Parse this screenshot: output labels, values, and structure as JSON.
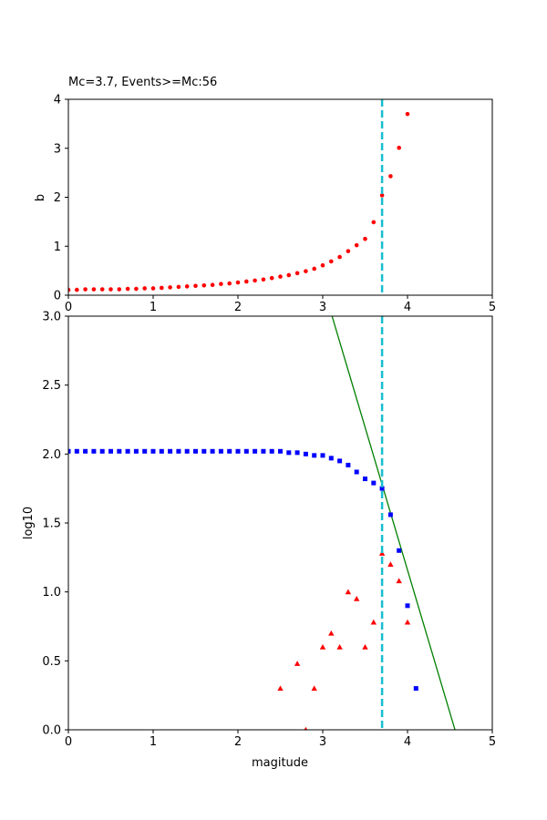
{
  "chart_data": [
    {
      "type": "scatter",
      "title": "Mc=3.7, Events>=Mc:56",
      "xlabel": "",
      "ylabel": "b",
      "xlim": [
        0,
        5
      ],
      "ylim": [
        0,
        4
      ],
      "xticks": [
        "0",
        "1",
        "2",
        "3",
        "4",
        "5"
      ],
      "yticks": [
        "0",
        "1",
        "2",
        "3",
        "4"
      ],
      "mc_line": {
        "x": 3.7,
        "color": "#17becf"
      },
      "series": [
        {
          "marker": "circle",
          "color": "#ff0000",
          "points": [
            [
              0.0,
              0.11
            ],
            [
              0.1,
              0.11
            ],
            [
              0.2,
              0.12
            ],
            [
              0.3,
              0.12
            ],
            [
              0.4,
              0.12
            ],
            [
              0.5,
              0.12
            ],
            [
              0.6,
              0.12
            ],
            [
              0.7,
              0.13
            ],
            [
              0.8,
              0.13
            ],
            [
              0.9,
              0.14
            ],
            [
              1.0,
              0.14
            ],
            [
              1.1,
              0.15
            ],
            [
              1.2,
              0.16
            ],
            [
              1.3,
              0.17
            ],
            [
              1.4,
              0.18
            ],
            [
              1.5,
              0.19
            ],
            [
              1.6,
              0.2
            ],
            [
              1.7,
              0.21
            ],
            [
              1.8,
              0.23
            ],
            [
              1.9,
              0.24
            ],
            [
              2.0,
              0.26
            ],
            [
              2.1,
              0.28
            ],
            [
              2.2,
              0.3
            ],
            [
              2.3,
              0.32
            ],
            [
              2.4,
              0.35
            ],
            [
              2.5,
              0.38
            ],
            [
              2.6,
              0.41
            ],
            [
              2.7,
              0.45
            ],
            [
              2.8,
              0.49
            ],
            [
              2.9,
              0.54
            ],
            [
              3.0,
              0.61
            ],
            [
              3.1,
              0.69
            ],
            [
              3.2,
              0.78
            ],
            [
              3.3,
              0.9
            ],
            [
              3.4,
              1.02
            ],
            [
              3.5,
              1.15
            ],
            [
              3.6,
              1.49
            ],
            [
              3.7,
              2.04
            ],
            [
              3.8,
              2.43
            ],
            [
              3.9,
              3.01
            ],
            [
              4.0,
              3.7
            ]
          ]
        }
      ]
    },
    {
      "type": "scatter",
      "title": "",
      "xlabel": "magitude",
      "ylabel": "log10",
      "xlim": [
        0,
        5
      ],
      "ylim": [
        0,
        3
      ],
      "xticks": [
        "0",
        "1",
        "2",
        "3",
        "4",
        "5"
      ],
      "yticks": [
        "0.0",
        "0.5",
        "1.0",
        "1.5",
        "2.0",
        "2.5",
        "3.0"
      ],
      "mc_line": {
        "x": 3.7,
        "color": "#17becf"
      },
      "fit_line": {
        "color": "#008000",
        "points": [
          [
            3.11,
            3.0
          ],
          [
            4.56,
            0.0
          ]
        ]
      },
      "series": [
        {
          "marker": "square",
          "color": "#0000ff",
          "points": [
            [
              0.0,
              2.02
            ],
            [
              0.1,
              2.02
            ],
            [
              0.2,
              2.02
            ],
            [
              0.3,
              2.02
            ],
            [
              0.4,
              2.02
            ],
            [
              0.5,
              2.02
            ],
            [
              0.6,
              2.02
            ],
            [
              0.7,
              2.02
            ],
            [
              0.8,
              2.02
            ],
            [
              0.9,
              2.02
            ],
            [
              1.0,
              2.02
            ],
            [
              1.1,
              2.02
            ],
            [
              1.2,
              2.02
            ],
            [
              1.3,
              2.02
            ],
            [
              1.4,
              2.02
            ],
            [
              1.5,
              2.02
            ],
            [
              1.6,
              2.02
            ],
            [
              1.7,
              2.02
            ],
            [
              1.8,
              2.02
            ],
            [
              1.9,
              2.02
            ],
            [
              2.0,
              2.02
            ],
            [
              2.1,
              2.02
            ],
            [
              2.2,
              2.02
            ],
            [
              2.3,
              2.02
            ],
            [
              2.4,
              2.02
            ],
            [
              2.5,
              2.02
            ],
            [
              2.6,
              2.01
            ],
            [
              2.7,
              2.01
            ],
            [
              2.8,
              2.0
            ],
            [
              2.9,
              1.99
            ],
            [
              3.0,
              1.99
            ],
            [
              3.1,
              1.97
            ],
            [
              3.2,
              1.95
            ],
            [
              3.3,
              1.92
            ],
            [
              3.4,
              1.87
            ],
            [
              3.5,
              1.82
            ],
            [
              3.6,
              1.79
            ],
            [
              3.7,
              1.75
            ],
            [
              3.8,
              1.56
            ],
            [
              3.9,
              1.3
            ],
            [
              4.0,
              0.9
            ],
            [
              4.1,
              0.3
            ]
          ]
        },
        {
          "marker": "triangle",
          "color": "#ff0000",
          "points": [
            [
              2.5,
              0.3
            ],
            [
              2.7,
              0.48
            ],
            [
              2.8,
              0.0
            ],
            [
              2.9,
              0.3
            ],
            [
              3.0,
              0.6
            ],
            [
              3.1,
              0.7
            ],
            [
              3.2,
              0.6
            ],
            [
              3.3,
              1.0
            ],
            [
              3.4,
              0.95
            ],
            [
              3.5,
              0.6
            ],
            [
              3.6,
              0.78
            ],
            [
              3.7,
              1.28
            ],
            [
              3.8,
              1.2
            ],
            [
              3.9,
              1.08
            ],
            [
              4.0,
              0.78
            ]
          ]
        }
      ]
    }
  ]
}
